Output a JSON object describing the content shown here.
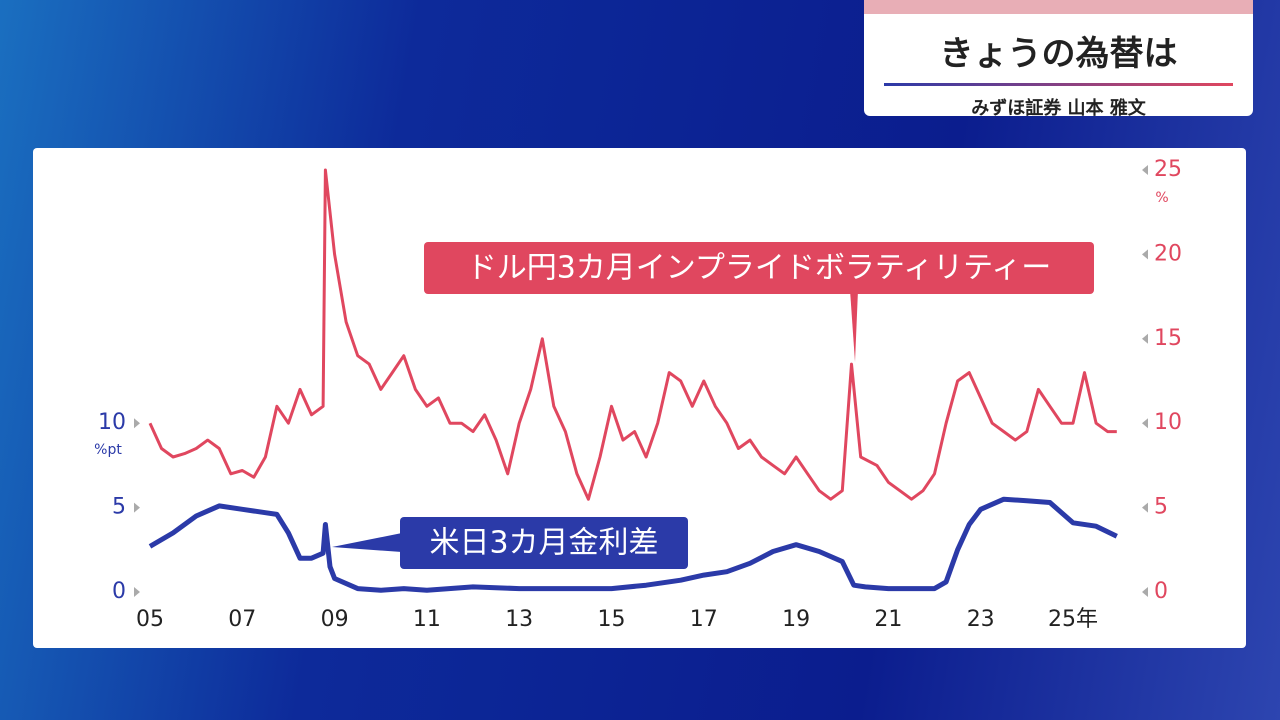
{
  "header": {
    "title": "きょうの為替は",
    "subtitle": "みずほ証券 山本 雅文"
  },
  "chart_data": {
    "type": "line",
    "xlim": [
      5,
      26
    ],
    "xticks": [
      {
        "value": 5,
        "label": "05"
      },
      {
        "value": 7,
        "label": "07"
      },
      {
        "value": 9,
        "label": "09"
      },
      {
        "value": 11,
        "label": "11"
      },
      {
        "value": 13,
        "label": "13"
      },
      {
        "value": 15,
        "label": "15"
      },
      {
        "value": 17,
        "label": "17"
      },
      {
        "value": 19,
        "label": "19"
      },
      {
        "value": 21,
        "label": "21"
      },
      {
        "value": 23,
        "label": "23"
      },
      {
        "value": 25,
        "label": "25年"
      }
    ],
    "ylim": [
      0,
      25
    ],
    "yticks": [
      0,
      5,
      10
    ],
    "y_unit": "%pt",
    "y2lim": [
      0,
      25
    ],
    "y2ticks": [
      0,
      5,
      10,
      15,
      20,
      25
    ],
    "y2_unit": "%",
    "series": [
      {
        "name": "ドル円3カ月インプライドボラティリティー",
        "color": "#e0475f",
        "axis": "y2",
        "x": [
          5.0,
          5.25,
          5.5,
          5.75,
          6.0,
          6.25,
          6.5,
          6.75,
          7.0,
          7.25,
          7.5,
          7.75,
          8.0,
          8.25,
          8.5,
          8.75,
          8.8,
          9.0,
          9.25,
          9.5,
          9.75,
          10.0,
          10.25,
          10.5,
          10.75,
          11.0,
          11.25,
          11.5,
          11.75,
          12.0,
          12.25,
          12.5,
          12.75,
          13.0,
          13.25,
          13.5,
          13.75,
          14.0,
          14.25,
          14.5,
          14.75,
          15.0,
          15.25,
          15.5,
          15.75,
          16.0,
          16.25,
          16.5,
          16.75,
          17.0,
          17.25,
          17.5,
          17.75,
          18.0,
          18.25,
          18.5,
          18.75,
          19.0,
          19.25,
          19.5,
          19.75,
          20.0,
          20.2,
          20.4,
          20.75,
          21.0,
          21.25,
          21.5,
          21.75,
          22.0,
          22.25,
          22.5,
          22.75,
          23.0,
          23.25,
          23.5,
          23.75,
          24.0,
          24.25,
          24.5,
          24.75,
          25.0,
          25.25,
          25.5,
          25.75,
          25.95
        ],
        "values": [
          10,
          8.5,
          8,
          8.2,
          8.5,
          9,
          8.5,
          7,
          7.2,
          6.8,
          8,
          11,
          10,
          12,
          10.5,
          11,
          25,
          20,
          16,
          14,
          13.5,
          12,
          13,
          14,
          12,
          11,
          11.5,
          10,
          10,
          9.5,
          10.5,
          9,
          7,
          10,
          12,
          15,
          11,
          9.5,
          7,
          5.5,
          8,
          11,
          9,
          9.5,
          8,
          10,
          13,
          12.5,
          11,
          12.5,
          11,
          10,
          8.5,
          9,
          8,
          7.5,
          7,
          8,
          7,
          6,
          5.5,
          6,
          13.5,
          8,
          7.5,
          6.5,
          6,
          5.5,
          6,
          7,
          10,
          12.5,
          13,
          11.5,
          10,
          9.5,
          9,
          9.5,
          12,
          11,
          10,
          10,
          13,
          10,
          9.5,
          9.5
        ]
      },
      {
        "name": "米日3カ月金利差",
        "color": "#2b3aa8",
        "axis": "y",
        "x": [
          5.0,
          5.5,
          6.0,
          6.5,
          7.0,
          7.5,
          7.75,
          8.0,
          8.25,
          8.5,
          8.75,
          8.8,
          8.9,
          9.0,
          9.5,
          10.0,
          10.5,
          11.0,
          12.0,
          13.0,
          14.0,
          15.0,
          15.75,
          16.5,
          17.0,
          17.5,
          18.0,
          18.5,
          19.0,
          19.5,
          20.0,
          20.25,
          20.5,
          21.0,
          22.0,
          22.25,
          22.5,
          22.75,
          23.0,
          23.5,
          24.0,
          24.5,
          25.0,
          25.5,
          25.95
        ],
        "values": [
          2.7,
          3.5,
          4.5,
          5.1,
          4.9,
          4.7,
          4.6,
          3.5,
          2.0,
          2.0,
          2.3,
          4.0,
          1.5,
          0.8,
          0.2,
          0.1,
          0.2,
          0.1,
          0.3,
          0.2,
          0.2,
          0.2,
          0.4,
          0.7,
          1.0,
          1.2,
          1.7,
          2.4,
          2.8,
          2.4,
          1.8,
          0.4,
          0.3,
          0.2,
          0.2,
          0.6,
          2.5,
          4.0,
          4.9,
          5.5,
          5.4,
          5.3,
          4.1,
          3.9,
          3.3
        ]
      }
    ]
  }
}
